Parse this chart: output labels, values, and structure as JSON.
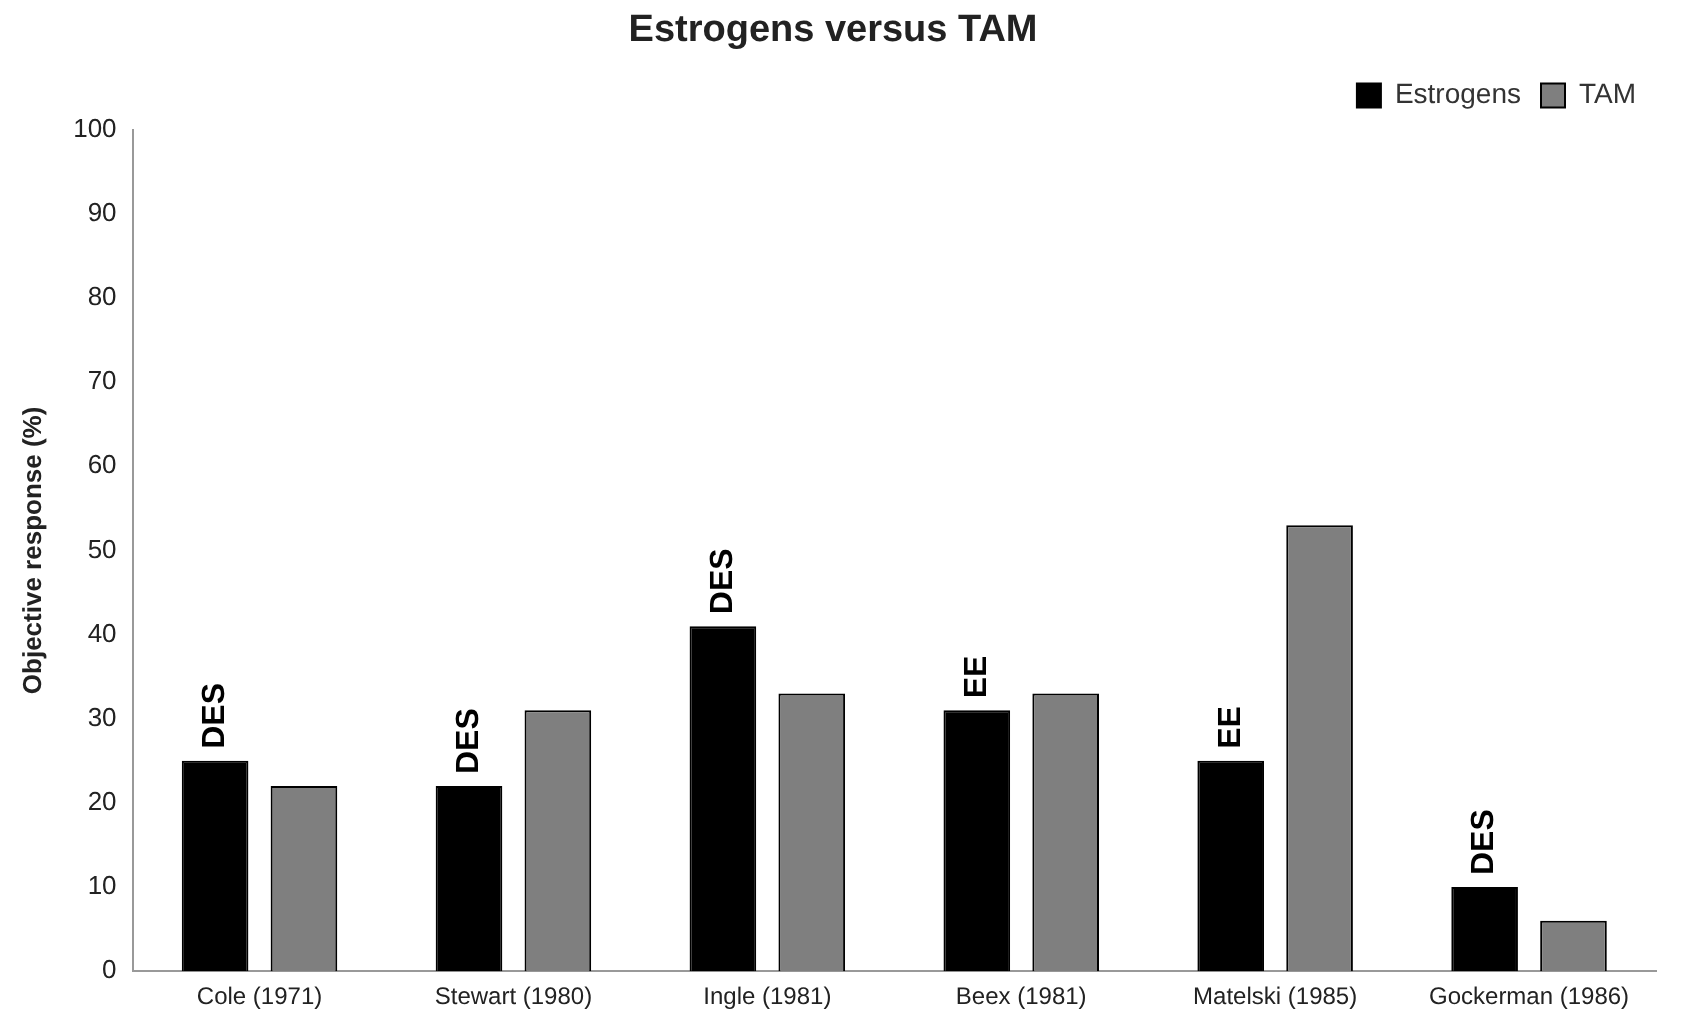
{
  "chart_data": {
    "type": "bar",
    "title": "Estrogens versus TAM",
    "ylabel": "Objective response (%)",
    "categories": [
      "Cole (1971)",
      "Stewart (1980)",
      "Ingle (1981)",
      "Beex (1981)",
      "Matelski (1985)",
      "Gockerman (1986)"
    ],
    "series": [
      {
        "name": "Estrogens",
        "color": "#000000",
        "values": [
          25,
          22,
          41,
          31,
          25,
          10
        ]
      },
      {
        "name": "TAM",
        "color": "#7f7f7f",
        "values": [
          22,
          31,
          33,
          33,
          53,
          6
        ]
      }
    ],
    "ylim": [
      0,
      100
    ],
    "yticks": [
      0,
      10,
      20,
      30,
      40,
      50,
      60,
      70,
      80,
      90,
      100
    ],
    "grid": false,
    "legend": "top right",
    "annotations": [
      "DES",
      "DES",
      "DES",
      "EE",
      "EE",
      "DES"
    ]
  }
}
